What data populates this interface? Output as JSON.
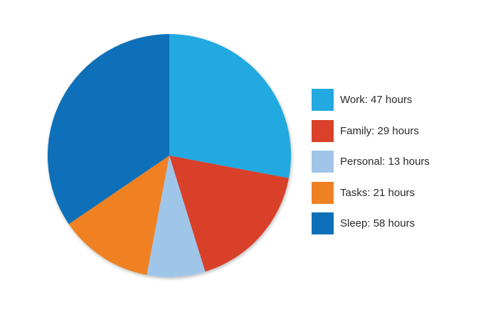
{
  "chart_data": {
    "type": "pie",
    "title": "",
    "legend_position": "right",
    "slices": [
      {
        "label": "Work: 47 hours",
        "category": "Work",
        "value": 47,
        "color": "#22a9e0"
      },
      {
        "label": "Family: 29 hours",
        "category": "Family",
        "value": 29,
        "color": "#d9412a"
      },
      {
        "label": "Personal: 13 hours",
        "category": "Personal",
        "value": 13,
        "color": "#9fc6e9"
      },
      {
        "label": "Tasks: 21 hours",
        "category": "Tasks",
        "value": 21,
        "color": "#ef8122"
      },
      {
        "label": "Sleep: 58 hours",
        "category": "Sleep",
        "value": 58,
        "color": "#0e70b8"
      }
    ],
    "start_angle_deg": 0,
    "direction": "clockwise"
  }
}
